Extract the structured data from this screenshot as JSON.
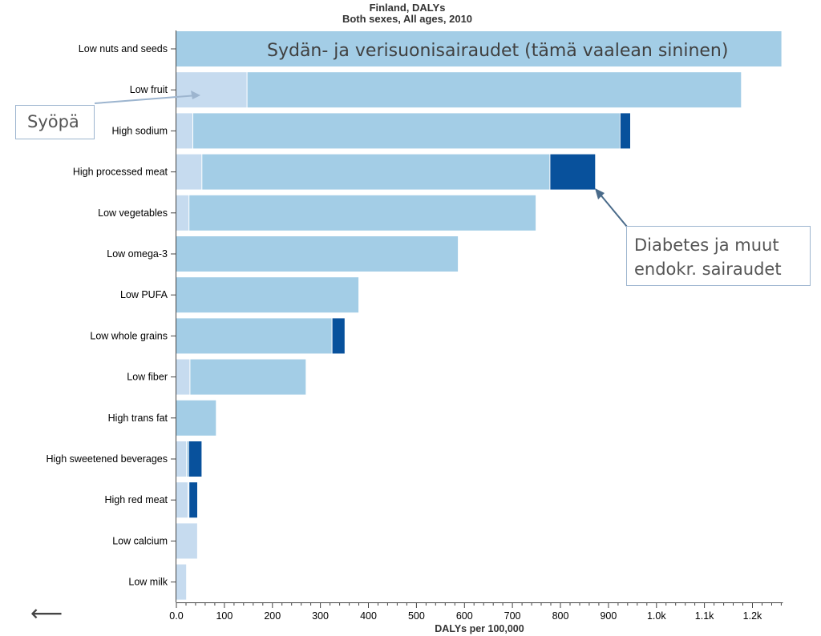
{
  "chart_data": {
    "type": "bar",
    "orientation": "horizontal",
    "stacked": true,
    "title": "Finland, DALYs",
    "subtitle": "Both sexes, All ages, 2010",
    "xlabel": "DALYs per 100,000",
    "ylabel": "",
    "xlim": [
      0,
      1270
    ],
    "x_ticks": [
      "0.0",
      "100",
      "200",
      "300",
      "400",
      "500",
      "600",
      "700",
      "800",
      "900",
      "1.0k",
      "1.1k",
      "1.2k"
    ],
    "x_tick_values": [
      0,
      100,
      200,
      300,
      400,
      500,
      600,
      700,
      800,
      900,
      1000,
      1100,
      1200
    ],
    "grid": false,
    "categories": [
      "Low nuts and seeds",
      "Low fruit",
      "High sodium",
      "High processed meat",
      "Low vegetables",
      "Low omega-3",
      "Low PUFA",
      "Low whole grains",
      "Low fiber",
      "High trans fat",
      "High sweetened beverages",
      "High red meat",
      "Low calcium",
      "Low milk"
    ],
    "series": [
      {
        "color": "#c6dbef",
        "values": [
          0,
          148,
          35,
          54,
          27,
          0,
          0,
          0,
          29,
          0,
          22,
          25,
          45,
          22
        ]
      },
      {
        "color": "#a3cde6",
        "values": [
          1262,
          1030,
          890,
          725,
          723,
          588,
          381,
          325,
          242,
          84,
          4,
          2,
          0,
          0
        ]
      },
      {
        "color": "#08519c",
        "values": [
          0,
          0,
          22,
          95,
          0,
          0,
          0,
          27,
          0,
          0,
          28,
          18,
          0,
          0
        ]
      }
    ]
  },
  "annotations": {
    "cardio": "Sydän- ja verisuonisairaudet (tämä vaalean sininen)",
    "cancer": "Syöpä",
    "diabetes": "Diabetes ja muut\nendokr. sairaudet"
  },
  "nav": {
    "back_icon": "left-arrow-icon",
    "back_label": "⟵"
  }
}
